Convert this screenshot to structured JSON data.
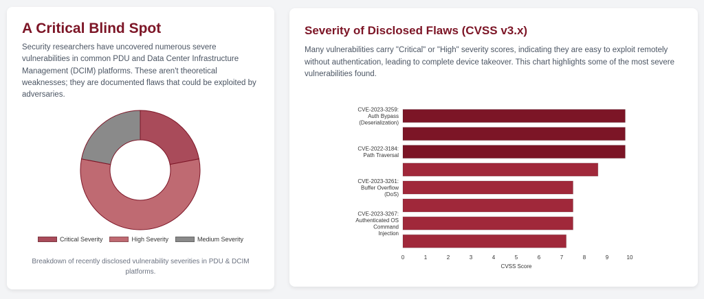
{
  "left_card": {
    "title": "A Critical Blind Spot",
    "description": "Security researchers have uncovered numerous severe vulnerabilities in common PDU and Data Center Infrastructure Management (DCIM) platforms. These aren't theoretical weaknesses; they are documented flaws that could be exploited by adversaries.",
    "caption": "Breakdown of recently disclosed vulnerability severities in PDU & DCIM platforms."
  },
  "right_card": {
    "title": "Severity of Disclosed Flaws (CVSS v3.x)",
    "description": "Many vulnerabilities carry \"Critical\" or \"High\" severity scores, indicating they are easy to exploit remotely without authentication, leading to complete device takeover. This chart highlights some of the most severe vulnerabilities found."
  },
  "chart_data": [
    {
      "type": "pie",
      "variant": "doughnut",
      "title": "",
      "categories": [
        "Critical Severity",
        "High Severity",
        "Medium Severity"
      ],
      "values": [
        22,
        56,
        22
      ],
      "colors": [
        "#a94b5a",
        "#bf6a72",
        "#8a8a8a"
      ],
      "legend_position": "bottom"
    },
    {
      "type": "bar",
      "orientation": "horizontal",
      "title": "",
      "xlabel": "CVSS Score",
      "ylabel": "",
      "xlim": [
        0,
        10
      ],
      "xticks": [
        "0",
        "1",
        "2",
        "3",
        "4",
        "5",
        "6",
        "7",
        "8",
        "9",
        "10"
      ],
      "category_labels": [
        [
          "CVE-2023-3259:",
          "Auth Bypass",
          "(Deserialization)"
        ],
        [
          ""
        ],
        [
          "CVE-2022-3184:",
          "Path Traversal"
        ],
        [
          ""
        ],
        [
          "CVE-2023-3261:",
          "Buffer Overflow",
          "(DoS)"
        ],
        [
          ""
        ],
        [
          "CVE-2023-3267:",
          "Authenticated OS",
          "Command",
          "Injection"
        ],
        [
          ""
        ]
      ],
      "values": [
        9.8,
        9.8,
        9.8,
        8.6,
        7.5,
        7.5,
        7.5,
        7.2
      ],
      "colors": [
        "#7c1526",
        "#7c1526",
        "#7c1526",
        "#a0283a",
        "#a0283a",
        "#a0283a",
        "#a0283a",
        "#a0283a"
      ],
      "grid": false,
      "legend": "none"
    }
  ]
}
